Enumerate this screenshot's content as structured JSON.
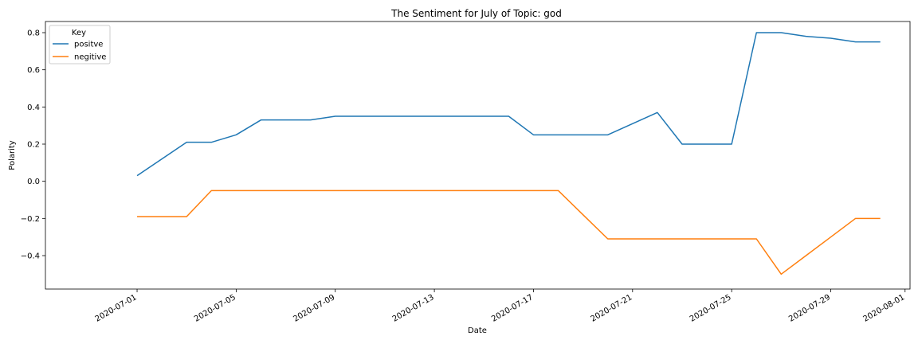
{
  "chart_data": {
    "type": "line",
    "title": "The Sentiment for July of Topic: god",
    "xlabel": "Date",
    "ylabel": "Polarity",
    "xlim": [
      "2020-06-27",
      "2020-08-01"
    ],
    "ylim": [
      -0.58,
      0.86
    ],
    "yticks": [
      -0.4,
      -0.2,
      0.0,
      0.2,
      0.4,
      0.6,
      0.8
    ],
    "ytick_labels": [
      "−0.4",
      "−0.2",
      "0.0",
      "0.2",
      "0.4",
      "0.6",
      "0.8"
    ],
    "xticks": [
      "2020-07-01",
      "2020-07-05",
      "2020-07-09",
      "2020-07-13",
      "2020-07-17",
      "2020-07-21",
      "2020-07-25",
      "2020-07-29",
      "2020-08-01"
    ],
    "legend": {
      "title": "Key",
      "placement": "top-left"
    },
    "grid": false,
    "series": [
      {
        "name": "positve",
        "color": "#1f77b4",
        "x": [
          "2020-07-01",
          "2020-07-03",
          "2020-07-04",
          "2020-07-05",
          "2020-07-06",
          "2020-07-07",
          "2020-07-08",
          "2020-07-09",
          "2020-07-10",
          "2020-07-11",
          "2020-07-12",
          "2020-07-13",
          "2020-07-14",
          "2020-07-15",
          "2020-07-16",
          "2020-07-17",
          "2020-07-18",
          "2020-07-19",
          "2020-07-20",
          "2020-07-21",
          "2020-07-22",
          "2020-07-23",
          "2020-07-24",
          "2020-07-25",
          "2020-07-26",
          "2020-07-27",
          "2020-07-28",
          "2020-07-29",
          "2020-07-30",
          "2020-07-31"
        ],
        "values": [
          0.03,
          0.21,
          0.21,
          0.25,
          0.33,
          0.33,
          0.33,
          0.35,
          0.35,
          0.35,
          0.35,
          0.35,
          0.35,
          0.35,
          0.35,
          0.25,
          0.25,
          0.25,
          0.25,
          0.31,
          0.37,
          0.2,
          0.2,
          0.2,
          0.8,
          0.8,
          0.78,
          0.77,
          0.75,
          0.75
        ]
      },
      {
        "name": "negitive",
        "color": "#ff7f0e",
        "x": [
          "2020-07-01",
          "2020-07-03",
          "2020-07-04",
          "2020-07-05",
          "2020-07-06",
          "2020-07-07",
          "2020-07-08",
          "2020-07-09",
          "2020-07-10",
          "2020-07-11",
          "2020-07-12",
          "2020-07-13",
          "2020-07-14",
          "2020-07-15",
          "2020-07-16",
          "2020-07-17",
          "2020-07-18",
          "2020-07-19",
          "2020-07-20",
          "2020-07-21",
          "2020-07-22",
          "2020-07-23",
          "2020-07-24",
          "2020-07-25",
          "2020-07-26",
          "2020-07-27",
          "2020-07-28",
          "2020-07-29",
          "2020-07-30",
          "2020-07-31"
        ],
        "values": [
          -0.19,
          -0.19,
          -0.05,
          -0.05,
          -0.05,
          -0.05,
          -0.05,
          -0.05,
          -0.05,
          -0.05,
          -0.05,
          -0.05,
          -0.05,
          -0.05,
          -0.05,
          -0.05,
          -0.05,
          -0.18,
          -0.31,
          -0.31,
          -0.31,
          -0.31,
          -0.31,
          -0.31,
          -0.31,
          -0.5,
          -0.4,
          -0.3,
          -0.2,
          -0.2
        ]
      }
    ]
  }
}
